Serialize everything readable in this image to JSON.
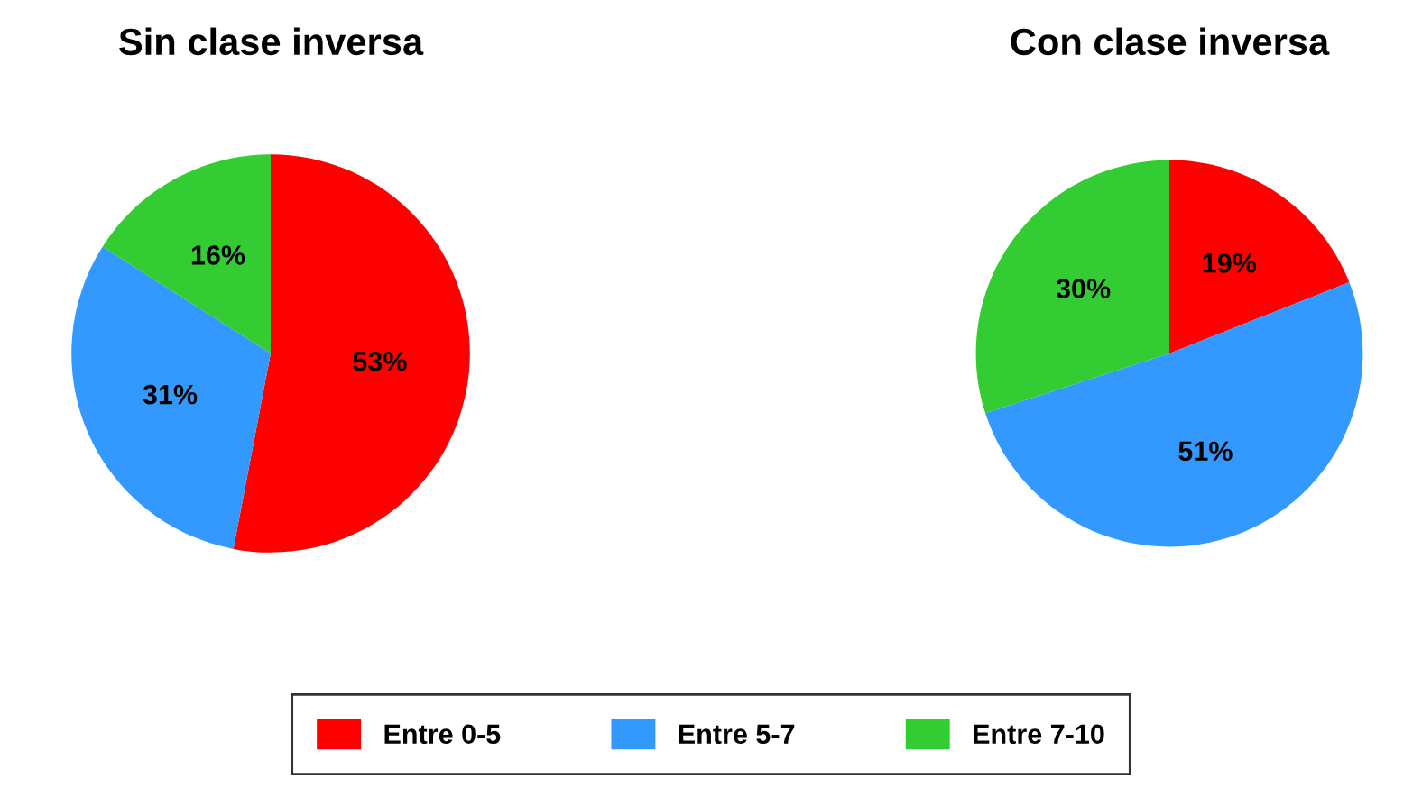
{
  "chart_data": [
    {
      "type": "pie",
      "title": "Sin clase inversa",
      "categories": [
        "Entre 0-5",
        "Entre 5-7",
        "Entre 7-10"
      ],
      "values": [
        53,
        31,
        16
      ],
      "value_labels": [
        "53%",
        "31%",
        "16%"
      ],
      "colors": [
        "#ff0000",
        "#3399ff",
        "#33cc33"
      ],
      "legend": "bottom"
    },
    {
      "type": "pie",
      "title": "Con clase inversa",
      "categories": [
        null,
        null,
        null
      ],
      "values": [
        19,
        51,
        30
      ],
      "value_labels": [
        "19%",
        "51%",
        "30%"
      ],
      "colors": [
        "#ff0000",
        "#3399ff",
        "#33cc33"
      ]
    }
  ]
}
